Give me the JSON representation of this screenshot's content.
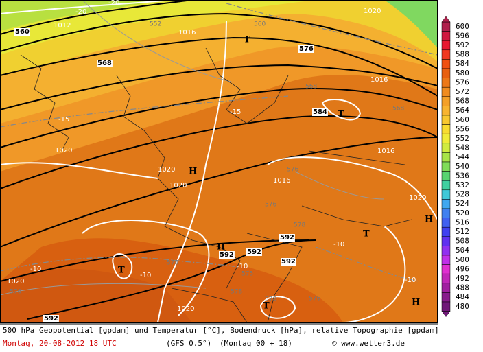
{
  "map": {
    "labels": [
      "-20",
      "-20",
      "560",
      "1012",
      "552",
      "1016",
      "560",
      "T",
      "576",
      "568",
      "1020",
      "1016",
      "568",
      "-15",
      "-15",
      "584",
      "T",
      "568",
      "1020",
      "1016",
      "1020",
      "H",
      "1020",
      "576",
      "1016",
      "576",
      "1020",
      "578",
      "592",
      "T",
      "H",
      "H",
      "592",
      "592",
      "-10",
      "592",
      "578",
      "-10",
      "T",
      "-10",
      "-10",
      "575",
      "1020",
      "-10",
      "576",
      "578",
      "578",
      "576",
      "T",
      "H",
      "1020",
      "592"
    ]
  },
  "colorbar": {
    "levels": [
      600,
      596,
      592,
      588,
      584,
      580,
      576,
      572,
      568,
      564,
      560,
      556,
      552,
      548,
      544,
      540,
      536,
      532,
      528,
      524,
      520,
      516,
      512,
      508,
      504,
      500,
      496,
      492,
      488,
      484,
      480
    ],
    "colors": [
      "#b0204c",
      "#d01840",
      "#e81830",
      "#f03820",
      "#f05010",
      "#e86010",
      "#ec7818",
      "#f08c20",
      "#f4a028",
      "#f8b430",
      "#f8c830",
      "#f8dc30",
      "#f0ec38",
      "#d0ec40",
      "#a8e448",
      "#80dc58",
      "#58d470",
      "#40d0a0",
      "#40c8d8",
      "#40a8f0",
      "#4080f0",
      "#4060f0",
      "#4040f0",
      "#6030f0",
      "#9030f0",
      "#c030e8",
      "#e030d0",
      "#c028b8",
      "#a020a0",
      "#881c8c",
      "#701878"
    ]
  },
  "footer": {
    "caption": "500 hPa Geopotential [gpdam] und Temperatur [°C], Bodendruck [hPa], relative Topographie [gpdam]",
    "date": "Montag, 20-08-2012  18 UTC",
    "model": "(GFS 0.5°)",
    "run": "(Montag 00 + 18)",
    "credit": "© www.wetter3.de"
  }
}
